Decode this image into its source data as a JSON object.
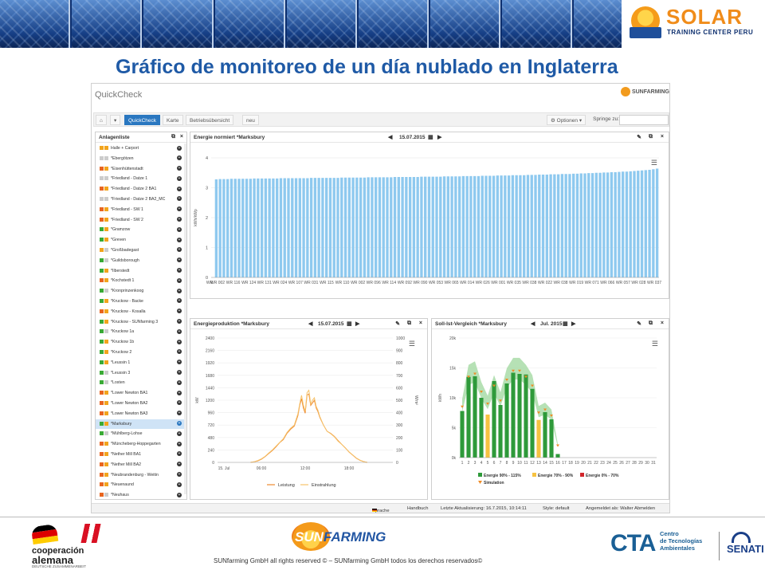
{
  "slide": {
    "title": "Gráfico  de monitoreo de un día nublado en Inglaterra",
    "brand_name": "SOLAR",
    "brand_sub": "TRAINING CENTER PERU"
  },
  "app": {
    "title": "QuickCheck",
    "logo_text": "SUNFARMING",
    "nav": {
      "home_icon": "⌂",
      "dropdown_icon": "▾",
      "tabs": [
        "QuickCheck",
        "Karte",
        "Betriebsübersicht",
        "neu"
      ],
      "options_label": "Optionen",
      "jump_label": "Springe zu:"
    },
    "sidebar": {
      "title": "Anlagenliste",
      "items": [
        {
          "label": "Halle + Carport",
          "c1": "#f2a41d",
          "c2": "#f2a41d"
        },
        {
          "label": "*Ebergötzen",
          "c1": "#cccccc",
          "c2": "#cccccc"
        },
        {
          "label": "*Eisenhüttenstadt",
          "c1": "#e8651f",
          "c2": "#f2a41d"
        },
        {
          "label": "*Friedland - Datze 1",
          "c1": "#cccccc",
          "c2": "#cccccc"
        },
        {
          "label": "*Friedland - Datze 2 BA1",
          "c1": "#e8651f",
          "c2": "#f2a41d"
        },
        {
          "label": "*Friedland - Datze 2 BA2_MC",
          "c1": "#cccccc",
          "c2": "#cccccc"
        },
        {
          "label": "*Friedland - SW 1",
          "c1": "#e8651f",
          "c2": "#f2a41d"
        },
        {
          "label": "*Friedland - SW 2",
          "c1": "#e8651f",
          "c2": "#f2a41d"
        },
        {
          "label": "*Gramzow",
          "c1": "#3aaa35",
          "c2": "#f2a41d"
        },
        {
          "label": "*Greven",
          "c1": "#3aaa35",
          "c2": "#f2a41d"
        },
        {
          "label": "*Großbadegast",
          "c1": "#f2a41d",
          "c2": "#cccccc"
        },
        {
          "label": "*Guildsborough",
          "c1": "#3aaa35",
          "c2": "#cccccc"
        },
        {
          "label": "*Ilberstedt",
          "c1": "#3aaa35",
          "c2": "#f2a41d"
        },
        {
          "label": "*Kochstedt 1",
          "c1": "#e8651f",
          "c2": "#f2a41d"
        },
        {
          "label": "*Kronprinzenkoog",
          "c1": "#3aaa35",
          "c2": "#cccccc"
        },
        {
          "label": "*Kruckow - Backe",
          "c1": "#3aaa35",
          "c2": "#f2a41d"
        },
        {
          "label": "*Kruckow - Kosalla",
          "c1": "#e8651f",
          "c2": "#f2a41d"
        },
        {
          "label": "*Kruckow - SUNfarming 3",
          "c1": "#3aaa35",
          "c2": "#f2a41d"
        },
        {
          "label": "*Kruckow 1a",
          "c1": "#3aaa35",
          "c2": "#cccccc"
        },
        {
          "label": "*Kruckow 1b",
          "c1": "#3aaa35",
          "c2": "#f2a41d"
        },
        {
          "label": "*Kruckow 2",
          "c1": "#3aaa35",
          "c2": "#f2a41d"
        },
        {
          "label": "*Leussin 1",
          "c1": "#3aaa35",
          "c2": "#f2a41d"
        },
        {
          "label": "*Leussin 3",
          "c1": "#3aaa35",
          "c2": "#cccccc"
        },
        {
          "label": "*Losten",
          "c1": "#3aaa35",
          "c2": "#cccccc"
        },
        {
          "label": "*Lower Newton BA1",
          "c1": "#e8651f",
          "c2": "#f2a41d"
        },
        {
          "label": "*Lower Newton BA2",
          "c1": "#e8651f",
          "c2": "#f2a41d"
        },
        {
          "label": "*Lower Newton BA3",
          "c1": "#e8651f",
          "c2": "#f2a41d"
        },
        {
          "label": "*Marksbury",
          "c1": "#3aaa35",
          "c2": "#f2a41d"
        },
        {
          "label": "*Mühlberg-Lohse",
          "c1": "#3aaa35",
          "c2": "#cccccc"
        },
        {
          "label": "*Müncheberg-Hoppegarten",
          "c1": "#e8651f",
          "c2": "#f2a41d"
        },
        {
          "label": "*Nether Mill BA1",
          "c1": "#e8651f",
          "c2": "#f2a41d"
        },
        {
          "label": "*Nether Mill BA2",
          "c1": "#e8651f",
          "c2": "#f2a41d"
        },
        {
          "label": "*Neubrandenburg - Weitin",
          "c1": "#e8651f",
          "c2": "#f2a41d"
        },
        {
          "label": "*Neuenaund",
          "c1": "#e8651f",
          "c2": "#f2a41d"
        },
        {
          "label": "*Neuhaus",
          "c1": "#e8651f",
          "c2": "#cccccc"
        }
      ],
      "selected_index": 27
    },
    "status_bar": {
      "sprache": "Sprache",
      "handbuch": "Handbuch",
      "last_update": "Letzte Aktualisierung: 16.7.2015, 10:14:11",
      "style": "Style: default",
      "user": "Angemeldet als: Walter Abmelden"
    }
  },
  "chart_data": [
    {
      "id": "energie-normiert",
      "type": "bar",
      "title": "Energie normiert *Marksbury",
      "date": "15.07.2015",
      "ylabel": "kWh/kWp",
      "ylim": [
        0,
        4
      ],
      "yticks": [
        0,
        1,
        2,
        3,
        4
      ],
      "color": "#8ec9ef",
      "x_labels": [
        "WR 002",
        "WR 116",
        "WR 124",
        "WR 131",
        "WR 024",
        "WR 107",
        "WR 031",
        "WR 115",
        "WR 110",
        "WR 002",
        "WR 096",
        "WR 114",
        "WR 092",
        "WR 090",
        "WR 053",
        "WR 065",
        "WR 014",
        "WR 026",
        "WR 001",
        "WR 035",
        "WR 038",
        "WR 022",
        "WR 038",
        "WR 019",
        "WR 071",
        "WR 066",
        "WR 057",
        "WR 028",
        "WR 037"
      ],
      "first_label": "WR",
      "values": [
        3.28,
        3.29,
        3.29,
        3.29,
        3.3,
        3.3,
        3.3,
        3.3,
        3.3,
        3.3,
        3.31,
        3.31,
        3.31,
        3.31,
        3.31,
        3.31,
        3.31,
        3.32,
        3.32,
        3.32,
        3.32,
        3.32,
        3.32,
        3.32,
        3.32,
        3.33,
        3.33,
        3.33,
        3.33,
        3.33,
        3.33,
        3.33,
        3.33,
        3.34,
        3.34,
        3.34,
        3.34,
        3.34,
        3.34,
        3.34,
        3.35,
        3.35,
        3.35,
        3.35,
        3.35,
        3.35,
        3.35,
        3.36,
        3.36,
        3.36,
        3.36,
        3.36,
        3.36,
        3.36,
        3.37,
        3.37,
        3.37,
        3.37,
        3.37,
        3.37,
        3.38,
        3.38,
        3.38,
        3.38,
        3.38,
        3.39,
        3.39,
        3.39,
        3.39,
        3.39,
        3.4,
        3.4,
        3.4,
        3.4,
        3.41,
        3.41,
        3.41,
        3.41,
        3.42,
        3.42,
        3.42,
        3.42,
        3.43,
        3.43,
        3.43,
        3.44,
        3.44,
        3.44,
        3.45,
        3.45,
        3.45,
        3.46,
        3.46,
        3.46,
        3.47,
        3.47,
        3.48,
        3.48,
        3.49,
        3.49,
        3.5,
        3.5,
        3.51,
        3.51,
        3.52,
        3.52,
        3.53,
        3.54,
        3.54,
        3.55,
        3.56,
        3.57,
        3.58,
        3.59,
        3.6,
        3.62,
        3.64
      ]
    },
    {
      "id": "energieproduktion",
      "type": "line",
      "title": "Energieproduktion *Marksbury",
      "date": "15.07.2015",
      "ylabel": "kW",
      "y2label": "W/m²",
      "ylim": [
        0,
        2400
      ],
      "y2lim": [
        0,
        1000
      ],
      "yticks": [
        0,
        240,
        480,
        720,
        960,
        1200,
        1440,
        1680,
        1920,
        2160,
        2400
      ],
      "y2ticks": [
        0,
        100,
        200,
        300,
        400,
        500,
        600,
        700,
        800,
        900,
        1000
      ],
      "x_tick_labels": [
        "15. Jul",
        "06:00",
        "12:00",
        "18:00"
      ],
      "x_tick_hours": [
        0,
        6,
        12,
        18
      ],
      "xlim_hours": [
        0,
        24
      ],
      "series": [
        {
          "name": "Leistung",
          "color": "#ee8a2f",
          "axis": "left",
          "x": [
            4.5,
            5,
            5.5,
            6,
            6.5,
            7,
            7.5,
            8,
            8.5,
            9,
            9.5,
            10,
            10.5,
            11,
            11.25,
            11.5,
            11.75,
            12,
            12.25,
            12.5,
            12.75,
            13,
            13.25,
            13.5,
            13.75,
            14,
            14.5,
            15,
            15.5,
            16,
            16.5,
            17,
            17.5,
            18,
            18.5,
            19,
            19.5,
            20,
            20.5
          ],
          "y": [
            0,
            10,
            30,
            60,
            110,
            170,
            230,
            300,
            380,
            440,
            560,
            640,
            700,
            900,
            1100,
            1230,
            1050,
            950,
            1300,
            1320,
            1100,
            1150,
            1200,
            1050,
            980,
            870,
            720,
            600,
            560,
            500,
            420,
            350,
            280,
            200,
            140,
            80,
            40,
            15,
            0
          ]
        },
        {
          "name": "Einstrahlung",
          "color": "#f6c36b",
          "axis": "right",
          "x": [
            4.5,
            5,
            5.5,
            6,
            6.5,
            7,
            7.5,
            8,
            8.5,
            9,
            9.5,
            10,
            10.5,
            11,
            11.25,
            11.5,
            11.75,
            12,
            12.25,
            12.5,
            12.75,
            13,
            13.25,
            13.5,
            13.75,
            14,
            14.5,
            15,
            15.5,
            16,
            16.5,
            17,
            17.5,
            18,
            18.5,
            19,
            19.5,
            20,
            20.5
          ],
          "y": [
            0,
            5,
            15,
            28,
            48,
            75,
            100,
            130,
            160,
            190,
            240,
            275,
            300,
            390,
            470,
            540,
            460,
            410,
            560,
            580,
            470,
            500,
            520,
            450,
            420,
            370,
            300,
            250,
            230,
            205,
            170,
            145,
            115,
            85,
            60,
            35,
            18,
            6,
            0
          ]
        }
      ]
    },
    {
      "id": "soll-ist-vergleich",
      "type": "bar",
      "title": "Soll-Ist-Vergleich *Marksbury",
      "date": "Jul. 2015",
      "ylabel": "kWh",
      "ylim": [
        0,
        20000
      ],
      "yticks": [
        0,
        5000,
        10000,
        15000,
        20000
      ],
      "ytick_labels": [
        "0k",
        "5k",
        "10k",
        "15k",
        "20k"
      ],
      "categories": [
        "1",
        "2",
        "3",
        "4",
        "5",
        "6",
        "7",
        "8",
        "9",
        "10",
        "11",
        "12",
        "13",
        "14",
        "15",
        "16",
        "17",
        "18",
        "19",
        "20",
        "21",
        "22",
        "23",
        "24",
        "25",
        "26",
        "27",
        "28",
        "29",
        "30",
        "31"
      ],
      "values": [
        7800,
        13500,
        13600,
        10000,
        7200,
        12800,
        8800,
        12400,
        14200,
        14000,
        13900,
        11500,
        6300,
        7600,
        6400,
        600,
        0,
        0,
        0,
        0,
        0,
        0,
        0,
        0,
        0,
        0,
        0,
        0,
        0,
        0,
        0
      ],
      "bar_colors": [
        "green",
        "green",
        "green",
        "green",
        "yellow",
        "green",
        "green",
        "green",
        "green",
        "green",
        "green",
        "green",
        "yellow",
        "green",
        "green",
        "green",
        "green",
        "green",
        "green",
        "green",
        "green",
        "green",
        "green",
        "green",
        "green",
        "green",
        "green",
        "green",
        "green",
        "green",
        "green"
      ],
      "simulation": [
        8500,
        13500,
        14000,
        11000,
        9000,
        12000,
        9500,
        13000,
        14500,
        14500,
        13500,
        12000,
        7500,
        8000,
        7000,
        2000
      ],
      "legend": [
        {
          "name": "Energie 90% - 115%",
          "color": "#2e9a3a"
        },
        {
          "name": "Energie 70% - 90%",
          "color": "#f6c241"
        },
        {
          "name": "Energie 0% - 70%",
          "color": "#d2262b"
        },
        {
          "name": "Simulation",
          "color": "#ef8b25"
        }
      ],
      "band_color": "#9ed79c"
    }
  ],
  "footer": {
    "coop_line1": "cooperación",
    "coop_line2": "alemana",
    "coop_line3": "DEUTSCHE ZUSAMMENARBEIT",
    "sunfarming_logo_sun": "SUN",
    "sunfarming_logo_farming": "FARMING",
    "copyright": "SUNfarming GmbH all rights reserved © – SUNfarming GmbH todos los derechos reservados©",
    "cta_short": "CTA",
    "cta_line1": "Centro",
    "cta_line2": "de Tecnologías",
    "cta_line3": "Ambientales",
    "senati": "SENATI"
  },
  "colors": {
    "title_blue": "#1f5aa6",
    "accent_blue": "#2a77c0",
    "brand_orange": "#f08c1a"
  }
}
